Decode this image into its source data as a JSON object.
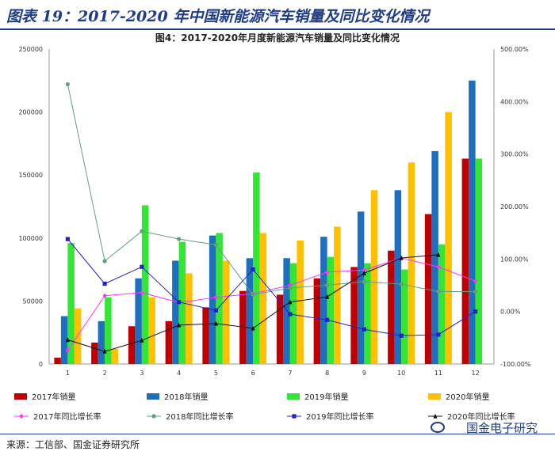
{
  "page_title": "图表 19：2017-2020 年中国新能源汽车销量及同比变化情况",
  "source": "来源：工信部、国金证券研究所",
  "brand": "国金电子研究",
  "chart_data": {
    "type": "bar",
    "title": "图4：2017-2020年月度新能源汽车销量及同比变化情况",
    "categories": [
      "1",
      "2",
      "3",
      "4",
      "5",
      "6",
      "7",
      "8",
      "9",
      "10",
      "11",
      "12"
    ],
    "y_left": {
      "min": 0,
      "max": 250000,
      "ticks": [
        "0",
        "50000",
        "100000",
        "150000",
        "200000",
        "250000"
      ]
    },
    "y_right": {
      "min": -100,
      "max": 500,
      "ticks": [
        "-100.00%",
        "0.00%",
        "100.00%",
        "200.00%",
        "300.00%",
        "400.00%",
        "500.00%"
      ]
    },
    "bar_series": [
      {
        "name": "2017年销量",
        "color": "#c00000",
        "values": [
          5000,
          17000,
          30000,
          34000,
          45000,
          58000,
          55000,
          68000,
          77000,
          90000,
          119000,
          163000
        ]
      },
      {
        "name": "2018年销量",
        "color": "#1f6fbf",
        "values": [
          38000,
          34000,
          68000,
          82000,
          102000,
          84000,
          84000,
          101000,
          121000,
          138000,
          169000,
          225000
        ]
      },
      {
        "name": "2019年销量",
        "color": "#33e633",
        "values": [
          96000,
          53000,
          126000,
          97000,
          104000,
          152000,
          80000,
          85000,
          80000,
          75000,
          95000,
          163000
        ]
      },
      {
        "name": "2020年销量",
        "color": "#ffc000",
        "values": [
          44000,
          12000,
          53000,
          72000,
          82000,
          104000,
          98000,
          109000,
          138000,
          160000,
          200000,
          null
        ]
      }
    ],
    "line_series": [
      {
        "name": "2017年同比增长率",
        "color": "#ff33ff",
        "marker": "diamond",
        "values": [
          -74,
          30,
          36,
          17,
          27,
          34,
          50,
          75,
          79,
          102,
          85,
          58
        ]
      },
      {
        "name": "2018年同比增长率",
        "color": "#5f9f7f",
        "marker": "circle",
        "values": [
          433,
          96,
          153,
          138,
          127,
          32,
          45,
          50,
          57,
          52,
          38,
          38
        ]
      },
      {
        "name": "2019年同比增长率",
        "color": "#2222cc",
        "marker": "square",
        "values": [
          138,
          53,
          85,
          18,
          2,
          80,
          -5,
          -16,
          -34,
          -46,
          -44,
          0
        ]
      },
      {
        "name": "2020年同比增长率",
        "color": "#111111",
        "marker": "triangle",
        "values": [
          -54,
          -76,
          -55,
          -26,
          -23,
          -32,
          18,
          28,
          73,
          102,
          108,
          null
        ]
      }
    ]
  }
}
